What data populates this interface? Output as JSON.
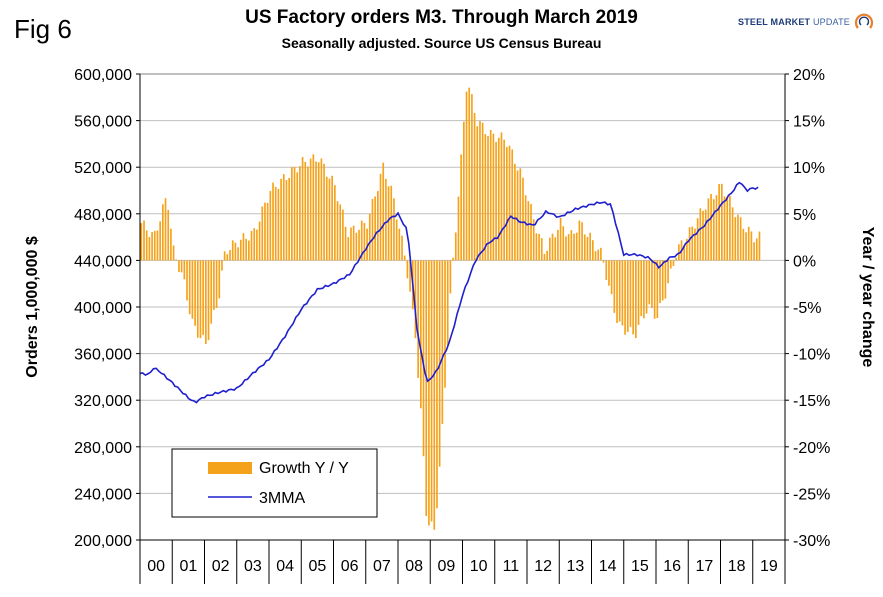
{
  "fig_label": "Fig 6",
  "logo": {
    "text_bold": "STEEL MARKET",
    "text_light": "UPDATE",
    "icon": "swoosh-logo-icon",
    "accent": "#e8802a",
    "brand": "#1d3c78"
  },
  "chart_data": {
    "type": "bar",
    "title": "US Factory orders M3. Through March 2019",
    "subtitle": "Seasonally adjusted.  Source US Census Bureau",
    "ylabel_left": "Orders 1,000,000 $",
    "ylabel_right": "Year / year change",
    "ylim_left": [
      200000,
      600000
    ],
    "ylim_right": [
      -30,
      20
    ],
    "yticks_left": [
      "200,000",
      "240,000",
      "280,000",
      "320,000",
      "360,000",
      "400,000",
      "440,000",
      "480,000",
      "520,000",
      "560,000",
      "600,000"
    ],
    "yticks_right": [
      "-30%",
      "-25%",
      "-20%",
      "-15%",
      "-10%",
      "-5%",
      "0%",
      "5%",
      "10%",
      "15%",
      "20%"
    ],
    "categories": [
      "00",
      "01",
      "02",
      "03",
      "04",
      "05",
      "06",
      "07",
      "08",
      "09",
      "10",
      "11",
      "12",
      "13",
      "14",
      "15",
      "16",
      "17",
      "18",
      "19"
    ],
    "grid": "horizontal",
    "legend_position": "bottom-left",
    "series": [
      {
        "name": "Growth Y / Y",
        "kind": "bar",
        "axis": "right",
        "color": "#f5a21b",
        "anchors": [
          [
            0,
            4
          ],
          [
            0.4,
            2.5
          ],
          [
            0.8,
            7
          ],
          [
            1,
            1
          ],
          [
            1.3,
            -2
          ],
          [
            1.6,
            -7
          ],
          [
            2.0,
            -9
          ],
          [
            2.4,
            -4
          ],
          [
            2.6,
            1
          ],
          [
            3,
            2
          ],
          [
            3.5,
            3
          ],
          [
            4,
            7.5
          ],
          [
            4.5,
            9
          ],
          [
            5,
            10.5
          ],
          [
            5.5,
            11
          ],
          [
            6,
            8
          ],
          [
            6.4,
            3
          ],
          [
            7,
            4
          ],
          [
            7.5,
            10
          ],
          [
            7.8,
            7
          ],
          [
            8.2,
            0
          ],
          [
            8.5,
            -8
          ],
          [
            8.7,
            -18
          ],
          [
            8.85,
            -28
          ],
          [
            9.1,
            -29
          ],
          [
            9.3,
            -20
          ],
          [
            9.6,
            -3
          ],
          [
            9.9,
            10
          ],
          [
            10.1,
            19.5
          ],
          [
            10.4,
            15
          ],
          [
            10.8,
            13.5
          ],
          [
            11.3,
            13
          ],
          [
            11.8,
            9
          ],
          [
            12.2,
            4
          ],
          [
            12.5,
            1
          ],
          [
            13,
            4
          ],
          [
            13.3,
            2.5
          ],
          [
            13.6,
            4
          ],
          [
            14,
            2
          ],
          [
            14.3,
            0.5
          ],
          [
            14.5,
            -3
          ],
          [
            14.8,
            -7
          ],
          [
            15.3,
            -8
          ],
          [
            15.7,
            -5
          ],
          [
            16,
            -6
          ],
          [
            16.3,
            -3
          ],
          [
            16.6,
            1
          ],
          [
            17,
            3
          ],
          [
            17.5,
            6
          ],
          [
            18,
            8
          ],
          [
            18.3,
            6
          ],
          [
            18.6,
            4
          ],
          [
            19,
            2.5
          ]
        ]
      },
      {
        "name": "3MMA",
        "kind": "line",
        "axis": "left",
        "color": "#1f1fcf",
        "anchors": [
          [
            0,
            343000
          ],
          [
            0.3,
            342000
          ],
          [
            0.4,
            348000
          ],
          [
            0.6,
            345000
          ],
          [
            1,
            335000
          ],
          [
            1.5,
            322000
          ],
          [
            1.7,
            318000
          ],
          [
            2,
            323000
          ],
          [
            2.5,
            327000
          ],
          [
            3,
            330000
          ],
          [
            3.5,
            343000
          ],
          [
            4,
            355000
          ],
          [
            4.5,
            375000
          ],
          [
            5,
            398000
          ],
          [
            5.5,
            415000
          ],
          [
            6,
            420000
          ],
          [
            6.5,
            428000
          ],
          [
            7,
            450000
          ],
          [
            7.3,
            462000
          ],
          [
            7.7,
            475000
          ],
          [
            8,
            480000
          ],
          [
            8.3,
            465000
          ],
          [
            8.6,
            378000
          ],
          [
            8.9,
            335000
          ],
          [
            9.2,
            345000
          ],
          [
            9.6,
            370000
          ],
          [
            10,
            410000
          ],
          [
            10.4,
            440000
          ],
          [
            10.8,
            455000
          ],
          [
            11.1,
            460000
          ],
          [
            11.5,
            478000
          ],
          [
            11.8,
            473000
          ],
          [
            12.2,
            470000
          ],
          [
            12.6,
            482000
          ],
          [
            13,
            477000
          ],
          [
            13.5,
            484000
          ],
          [
            14,
            488000
          ],
          [
            14.3,
            490000
          ],
          [
            14.6,
            488000
          ],
          [
            15,
            445000
          ],
          [
            15.4,
            445000
          ],
          [
            15.8,
            442000
          ],
          [
            16.1,
            434000
          ],
          [
            16.4,
            442000
          ],
          [
            16.7,
            445000
          ],
          [
            17,
            457000
          ],
          [
            17.5,
            470000
          ],
          [
            18,
            487000
          ],
          [
            18.4,
            500000
          ],
          [
            18.6,
            508000
          ],
          [
            18.8,
            500000
          ],
          [
            19,
            502000
          ]
        ]
      }
    ]
  }
}
